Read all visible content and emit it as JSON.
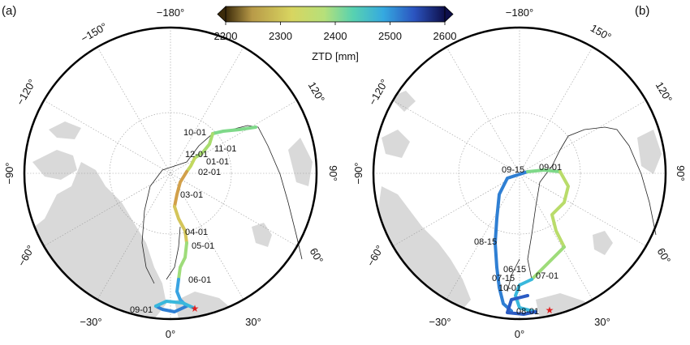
{
  "colorbar": {
    "label": "ZTD [mm]",
    "ticks": [
      "2200",
      "2300",
      "2400",
      "2500",
      "2600"
    ],
    "range": [
      2200,
      2600
    ]
  },
  "panels": [
    {
      "panel_label": "(a)",
      "lon_labels": {
        "deg_0": "0°",
        "deg_m30": "−30°",
        "deg_30": "30°",
        "deg_m60": "−60°",
        "deg_60": "60°",
        "deg_m90": "−90°",
        "deg_90": "90°",
        "deg_m120": "−120°",
        "deg_120": "120°",
        "deg_m150": "−150°",
        "deg_m180": "−180°"
      },
      "date_labels": [
        "10-01",
        "11-01",
        "12-01",
        "01-01",
        "02-01",
        "03-01",
        "04-01",
        "05-01",
        "06-01",
        "09-01"
      ]
    },
    {
      "panel_label": "(b)",
      "lon_labels": {
        "deg_0": "0°",
        "deg_m30": "−30°",
        "deg_30": "30°",
        "deg_m60": "−60°",
        "deg_60": "60°",
        "deg_m90": "−90°",
        "deg_90": "90°",
        "deg_m120": "−120°",
        "deg_120": "120°",
        "deg_150": "150°",
        "deg_m180": "−180°"
      },
      "date_labels": [
        "09-15",
        "09-01",
        "08-15",
        "06-15",
        "07-15",
        "07-01",
        "10-01",
        "08-01"
      ]
    }
  ],
  "colors": {
    "land": "#d9d9d9",
    "grid": "#9a9a9a",
    "boundary": "#000000",
    "ice_edge": "#222222",
    "start_marker": "#e02020"
  }
}
